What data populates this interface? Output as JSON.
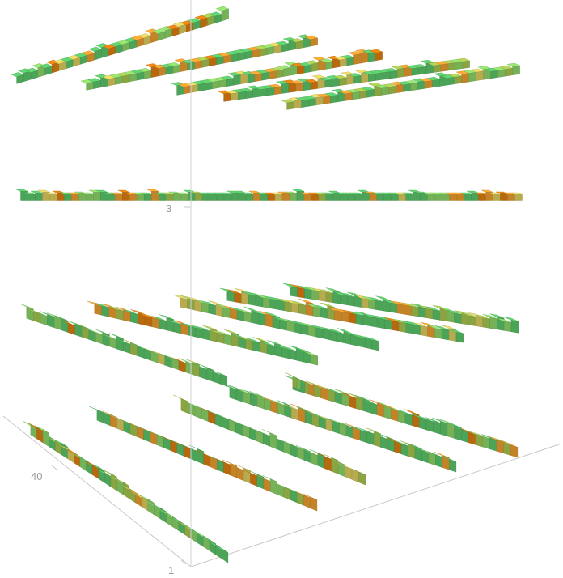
{
  "chart_data": {
    "type": "3d-bar-layers",
    "title": "",
    "xlabel": "",
    "ylabel": "",
    "zlabel": "",
    "depth_ticks": [
      "40",
      "1"
    ],
    "height_ticks": [
      "3"
    ],
    "grid": false,
    "legend": "none",
    "colors": {
      "green": "#5cc86a",
      "light_green": "#8ed86a",
      "olive": "#a8c850",
      "yellow": "#e0d060",
      "orange": "#f0a030",
      "dark_orange": "#e08010",
      "axis": "#c8c8c8",
      "tick_text": "#9a9a9a"
    },
    "layers": [
      {
        "level": 1,
        "rows": 6,
        "style": "beams",
        "orange_share": 0.25
      },
      {
        "level": 2,
        "rows": 6,
        "style": "beams",
        "orange_share": 0.2
      },
      {
        "level": 3,
        "rows": 1,
        "style": "flat-strip",
        "orange_share": 0.3
      },
      {
        "level": 4,
        "rows": 5,
        "style": "beams",
        "orange_share": 0.3
      }
    ]
  }
}
